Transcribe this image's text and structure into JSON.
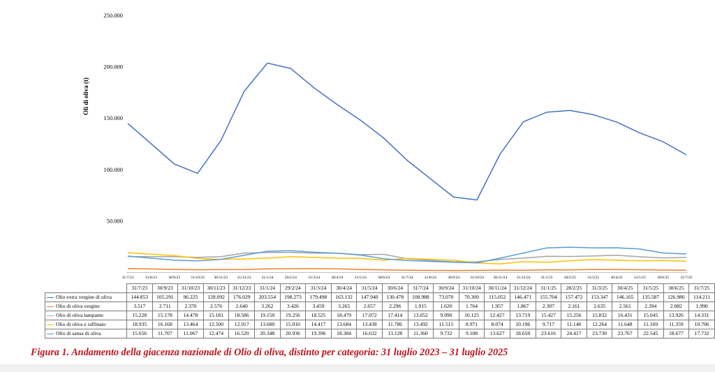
{
  "chart_data": {
    "type": "line",
    "ylabel": "Oli di oliva (t)",
    "ylim": [
      0,
      250000
    ],
    "yticks": [
      "",
      "50.000",
      "100.000",
      "150.000",
      "200.000",
      "250.000"
    ],
    "grid": false,
    "categories": [
      "31/7/23",
      "30/9/23",
      "31/10/23",
      "30/11/23",
      "31/12/23",
      "31/1/24",
      "29/2/24",
      "31/3/24",
      "30/4/24",
      "31/5/24",
      "30/6/24",
      "31/7/24",
      "30/9/24",
      "31/10/24",
      "30/11/24",
      "31/12/24",
      "31/1/25",
      "28/2/25",
      "31/3/25",
      "30/4/25",
      "31/5/25",
      "30/6/25",
      "31/7/25"
    ],
    "axis_categories": [
      "31/7/23",
      "31/8/23",
      "30/9/23",
      "31/10/23",
      "30/11/23",
      "31/12/23",
      "31/1/24",
      "29/2/24",
      "31/3/24",
      "30/4/24",
      "31/5/24",
      "30/6/24",
      "31/7/24",
      "31/8/24",
      "30/9/24",
      "31/10/24",
      "30/11/24",
      "31/12/24",
      "31/1/25",
      "28/2/25",
      "31/3/25",
      "30/4/25",
      "31/5/25",
      "30/6/25",
      "31/7/25"
    ],
    "series": [
      {
        "name": "Olio extra vergine di oliva",
        "color": "#4472c4",
        "values": [
          144853,
          105291,
          96225,
          128092,
          176029,
          203554,
          198273,
          179498,
          163132,
          147940,
          130478,
          108988,
          73070,
          70300,
          115052,
          146471,
          155704,
          157472,
          153347,
          146165,
          135587,
          126986,
          114211
        ],
        "labels": [
          "144.853",
          "105.291",
          "96.225",
          "128.092",
          "176.029",
          "203.554",
          "198.273",
          "179.498",
          "163.132",
          "147.940",
          "130.478",
          "108.988",
          "73.070",
          "70.300",
          "115.052",
          "146.471",
          "155.704",
          "157.472",
          "153.347",
          "146.165",
          "135.587",
          "126.986",
          "114.211"
        ]
      },
      {
        "name": "Olio di oliva vergine",
        "color": "#ed7d31",
        "values": [
          3517,
          2711,
          2370,
          2576,
          2640,
          3262,
          3426,
          3459,
          3265,
          2657,
          2296,
          1915,
          1620,
          1764,
          1957,
          1867,
          2307,
          2161,
          2635,
          2561,
          2394,
          2082,
          1990
        ],
        "labels": [
          "3.517",
          "2.711",
          "2.370",
          "2.576",
          "2.640",
          "3.262",
          "3.426",
          "3.459",
          "3.265",
          "2.657",
          "2.296",
          "1.915",
          "1.620",
          "1.764",
          "1.957",
          "1.867",
          "2.307",
          "2.161",
          "2.635",
          "2.561",
          "2.394",
          "2.082",
          "1.990"
        ]
      },
      {
        "name": "Olio di oliva lampante",
        "color": "#a5a5a5",
        "values": [
          15228,
          15178,
          14478,
          15181,
          18586,
          19150,
          19256,
          18525,
          18479,
          17072,
          17414,
          13052,
          9990,
          10125,
          12427,
          13719,
          15427,
          15256,
          15832,
          16431,
          15045,
          13926,
          14331
        ],
        "labels": [
          "15.228",
          "15.178",
          "14.478",
          "15.181",
          "18.586",
          "19.150",
          "19.256",
          "18.525",
          "18.479",
          "17.072",
          "17.414",
          "13.052",
          "9.990",
          "10.125",
          "12.427",
          "13.719",
          "15.427",
          "15.256",
          "15.832",
          "16.431",
          "15.045",
          "13.926",
          "14.331"
        ]
      },
      {
        "name": "Olio di oliva e raffinato",
        "color": "#ffc000",
        "values": [
          18935,
          16168,
          13464,
          12500,
          12917,
          13680,
          15010,
          14417,
          13684,
          13438,
          11786,
          13492,
          11515,
          8971,
          8074,
          10196,
          9717,
          11140,
          12264,
          11648,
          11169,
          11359,
          10706
        ],
        "labels": [
          "18.935",
          "16.168",
          "13.464",
          "12.500",
          "12.917",
          "13.680",
          "15.010",
          "14.417",
          "13.684",
          "13.438",
          "11.786",
          "13.492",
          "11.515",
          "8.971",
          "8.074",
          "10.196",
          "9.717",
          "11.140",
          "12.264",
          "11.648",
          "11.169",
          "11.359",
          "10.706"
        ]
      },
      {
        "name": "Olio di sansa di oliva",
        "color": "#5b9bd5",
        "values": [
          15656,
          11707,
          11067,
          12474,
          16520,
          20348,
          20936,
          19396,
          18384,
          16632,
          13128,
          11360,
          9732,
          9108,
          13627,
          18650,
          23616,
          24417,
          23730,
          23767,
          22545,
          18677,
          17732
        ],
        "labels": [
          "15.656",
          "11.707",
          "11.067",
          "12.474",
          "16.520",
          "20.348",
          "20.936",
          "19.396",
          "18.384",
          "16.632",
          "13.128",
          "11.360",
          "9.732",
          "9.108",
          "13.627",
          "18.650",
          "23.616",
          "24.417",
          "23.730",
          "23.767",
          "22.545",
          "18.677",
          "17.732"
        ]
      }
    ]
  },
  "caption": "Figura 1. Andamento della giacenza nazionale di Olio di oliva, distinto per categoria: 31 luglio 2023 – 31 luglio 2025"
}
